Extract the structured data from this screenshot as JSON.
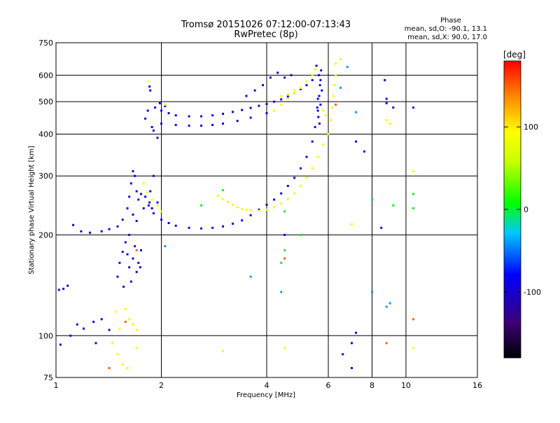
{
  "chart_data": {
    "type": "scatter",
    "title": "Tromsø 20151026 07:12:00-07:13:43",
    "subtitle": "RwPretec (8p)",
    "xlabel": "Frequency [MHz]",
    "ylabel": "Stationary phase Virtual Height [km]",
    "x_scale": "log",
    "y_scale": "log",
    "xlim": [
      1,
      16
    ],
    "ylim": [
      75,
      750
    ],
    "x_ticks": [
      1,
      2,
      4,
      6,
      8,
      10,
      16
    ],
    "x_tick_labels": [
      "1",
      "2",
      "4",
      "6",
      "8",
      "10",
      "16"
    ],
    "y_ticks": [
      75,
      100,
      200,
      300,
      400,
      500,
      600,
      750
    ],
    "y_tick_labels": [
      "75",
      "100",
      "200",
      "300",
      "400",
      "500",
      "600",
      "750"
    ],
    "grid": true,
    "phase_box": {
      "title": "Phase",
      "line_o": "mean, sd,O: -90.1, 13.1",
      "line_x": "mean, sd,X:  90.0, 17.0"
    },
    "colorbar": {
      "label": "[deg]",
      "range": [
        -180,
        180
      ],
      "ticks": [
        100,
        0,
        -100
      ],
      "tick_labels": [
        "100",
        "0",
        "-100"
      ]
    },
    "series": [
      {
        "polarization": "O",
        "phase": -95,
        "points": [
          [
            1.02,
            137
          ],
          [
            1.05,
            138
          ],
          [
            1.08,
            141
          ],
          [
            1.12,
            214
          ],
          [
            1.18,
            205
          ],
          [
            1.25,
            203
          ],
          [
            1.35,
            205
          ],
          [
            1.42,
            208
          ],
          [
            1.5,
            212
          ],
          [
            1.55,
            222
          ],
          [
            1.6,
            240
          ],
          [
            1.62,
            260
          ],
          [
            1.64,
            285
          ],
          [
            1.66,
            310
          ],
          [
            1.68,
            300
          ],
          [
            1.7,
            270
          ],
          [
            1.72,
            255
          ],
          [
            1.75,
            265
          ],
          [
            1.8,
            260
          ],
          [
            1.85,
            250
          ],
          [
            1.88,
            240
          ],
          [
            1.9,
            232
          ],
          [
            1.5,
            150
          ],
          [
            1.52,
            165
          ],
          [
            1.55,
            178
          ],
          [
            1.58,
            190
          ],
          [
            1.6,
            175
          ],
          [
            1.62,
            160
          ],
          [
            1.64,
            145
          ],
          [
            1.66,
            170
          ],
          [
            1.7,
            155
          ],
          [
            1.72,
            165
          ],
          [
            1.75,
            180
          ],
          [
            1.56,
            140
          ],
          [
            1.68,
            185
          ],
          [
            1.74,
            160
          ],
          [
            1.62,
            200
          ],
          [
            1.66,
            230
          ],
          [
            1.7,
            220
          ],
          [
            1.78,
            240
          ],
          [
            1.84,
            245
          ],
          [
            1.86,
            270
          ],
          [
            1.9,
            300
          ],
          [
            1.95,
            250
          ],
          [
            2.0,
            222
          ],
          [
            2.1,
            217
          ],
          [
            2.2,
            213
          ],
          [
            2.4,
            210
          ],
          [
            2.6,
            209
          ],
          [
            2.8,
            210
          ],
          [
            3.0,
            212
          ],
          [
            3.2,
            216
          ],
          [
            3.4,
            221
          ],
          [
            3.6,
            229
          ],
          [
            3.8,
            238
          ],
          [
            4.0,
            246
          ],
          [
            4.2,
            255
          ],
          [
            4.4,
            266
          ],
          [
            4.6,
            280
          ],
          [
            4.8,
            296
          ],
          [
            5.0,
            316
          ],
          [
            5.2,
            342
          ],
          [
            5.4,
            380
          ],
          [
            5.5,
            420
          ],
          [
            5.6,
            470
          ],
          [
            5.65,
            520
          ],
          [
            5.7,
            580
          ],
          [
            5.72,
            620
          ],
          [
            5.68,
            560
          ],
          [
            5.6,
            510
          ],
          [
            5.58,
            480
          ],
          [
            5.62,
            450
          ],
          [
            5.66,
            430
          ],
          [
            5.7,
            490
          ],
          [
            5.75,
            540
          ],
          [
            5.64,
            600
          ],
          [
            5.55,
            640
          ],
          [
            1.9,
            410
          ],
          [
            1.95,
            390
          ],
          [
            2.0,
            470
          ],
          [
            2.1,
            462
          ],
          [
            2.2,
            455
          ],
          [
            2.4,
            452
          ],
          [
            2.6,
            452
          ],
          [
            2.8,
            455
          ],
          [
            3.0,
            460
          ],
          [
            3.2,
            466
          ],
          [
            3.4,
            472
          ],
          [
            3.6,
            479
          ],
          [
            3.8,
            486
          ],
          [
            4.0,
            492
          ],
          [
            4.2,
            500
          ],
          [
            4.4,
            508
          ],
          [
            4.6,
            518
          ],
          [
            4.8,
            530
          ],
          [
            5.0,
            545
          ],
          [
            5.2,
            560
          ],
          [
            5.4,
            580
          ],
          [
            2.0,
            430
          ],
          [
            2.2,
            426
          ],
          [
            2.4,
            424
          ],
          [
            2.6,
            424
          ],
          [
            2.8,
            426
          ],
          [
            3.0,
            430
          ],
          [
            3.3,
            438
          ],
          [
            3.6,
            448
          ],
          [
            4.0,
            462
          ],
          [
            1.85,
            555
          ],
          [
            1.86,
            540
          ],
          [
            1.83,
            470
          ],
          [
            1.8,
            445
          ],
          [
            1.88,
            420
          ],
          [
            1.92,
            480
          ],
          [
            1.98,
            495
          ],
          [
            2.05,
            485
          ],
          [
            3.5,
            520
          ],
          [
            3.7,
            540
          ],
          [
            3.9,
            560
          ],
          [
            4.1,
            590
          ],
          [
            4.3,
            610
          ],
          [
            4.5,
            590
          ],
          [
            4.7,
            600
          ],
          [
            1.15,
            108
          ],
          [
            1.2,
            105
          ],
          [
            1.28,
            110
          ],
          [
            1.35,
            112
          ],
          [
            1.42,
            104
          ],
          [
            1.1,
            100
          ],
          [
            1.03,
            94
          ],
          [
            1.3,
            95
          ],
          [
            8.7,
            580
          ],
          [
            8.8,
            510
          ],
          [
            8.8,
            495
          ],
          [
            7.2,
            380
          ],
          [
            7.6,
            355
          ],
          [
            8.5,
            210
          ],
          [
            9.2,
            480
          ],
          [
            10.5,
            480
          ],
          [
            4.5,
            200
          ],
          [
            7.0,
            80
          ],
          [
            6.6,
            88
          ],
          [
            7.0,
            95
          ],
          [
            7.2,
            102
          ]
        ]
      },
      {
        "polarization": "X",
        "phase": 90,
        "points": [
          [
            2.9,
            262
          ],
          [
            3.0,
            256
          ],
          [
            3.1,
            251
          ],
          [
            3.2,
            246
          ],
          [
            3.3,
            242
          ],
          [
            3.4,
            239
          ],
          [
            3.5,
            238
          ],
          [
            3.6,
            237
          ],
          [
            3.8,
            236
          ],
          [
            4.0,
            238
          ],
          [
            4.2,
            242
          ],
          [
            4.4,
            248
          ],
          [
            4.6,
            256
          ],
          [
            4.8,
            266
          ],
          [
            5.0,
            280
          ],
          [
            5.2,
            296
          ],
          [
            5.4,
            316
          ],
          [
            5.6,
            342
          ],
          [
            5.8,
            372
          ],
          [
            6.0,
            400
          ],
          [
            6.1,
            440
          ],
          [
            6.15,
            480
          ],
          [
            6.2,
            520
          ],
          [
            6.25,
            560
          ],
          [
            6.3,
            600
          ],
          [
            4.2,
            470
          ],
          [
            4.4,
            490
          ],
          [
            4.6,
            510
          ],
          [
            4.8,
            530
          ],
          [
            5.0,
            550
          ],
          [
            5.2,
            575
          ],
          [
            5.4,
            600
          ],
          [
            5.5,
            625
          ],
          [
            4.4,
            520
          ],
          [
            4.6,
            525
          ],
          [
            4.8,
            540
          ],
          [
            1.58,
            120
          ],
          [
            1.62,
            112
          ],
          [
            1.66,
            108
          ],
          [
            1.7,
            104
          ],
          [
            1.48,
            118
          ],
          [
            1.52,
            105
          ],
          [
            1.45,
            95
          ],
          [
            1.5,
            88
          ],
          [
            1.55,
            82
          ],
          [
            1.6,
            80
          ],
          [
            1.7,
            92
          ],
          [
            1.78,
            285
          ],
          [
            1.82,
            268
          ],
          [
            1.88,
            255
          ],
          [
            1.95,
            245
          ],
          [
            2.0,
            235
          ],
          [
            1.84,
            575
          ],
          [
            2.05,
            490
          ],
          [
            6.5,
            670
          ],
          [
            6.3,
            650
          ],
          [
            10.5,
            310
          ],
          [
            10.5,
            92
          ],
          [
            8.8,
            440
          ],
          [
            9.0,
            430
          ],
          [
            7.0,
            215
          ],
          [
            4.5,
            92
          ],
          [
            3.0,
            90
          ],
          [
            5.8,
            470
          ],
          [
            5.9,
            455
          ]
        ]
      },
      {
        "polarization": "mixed",
        "phase": 0,
        "points": [
          [
            2.6,
            245
          ],
          [
            3.0,
            272
          ],
          [
            4.5,
            235
          ],
          [
            5.0,
            200
          ],
          [
            9.2,
            245
          ],
          [
            10.5,
            240
          ],
          [
            10.5,
            265
          ],
          [
            8.0,
            255
          ],
          [
            4.5,
            180
          ],
          [
            4.4,
            165
          ]
        ]
      },
      {
        "polarization": "mixed",
        "phase": -40,
        "points": [
          [
            8.0,
            135
          ],
          [
            8.8,
            122
          ],
          [
            9.0,
            125
          ],
          [
            4.4,
            135
          ],
          [
            2.05,
            185
          ],
          [
            6.5,
            550
          ],
          [
            6.8,
            635
          ],
          [
            7.2,
            465
          ],
          [
            3.6,
            150
          ]
        ]
      },
      {
        "polarization": "mixed",
        "phase": 150,
        "points": [
          [
            10.5,
            112
          ],
          [
            6.3,
            490
          ],
          [
            4.5,
            170
          ],
          [
            1.7,
            180
          ],
          [
            8.8,
            95
          ],
          [
            1.42,
            80
          ],
          [
            1.58,
            110
          ]
        ]
      }
    ]
  }
}
